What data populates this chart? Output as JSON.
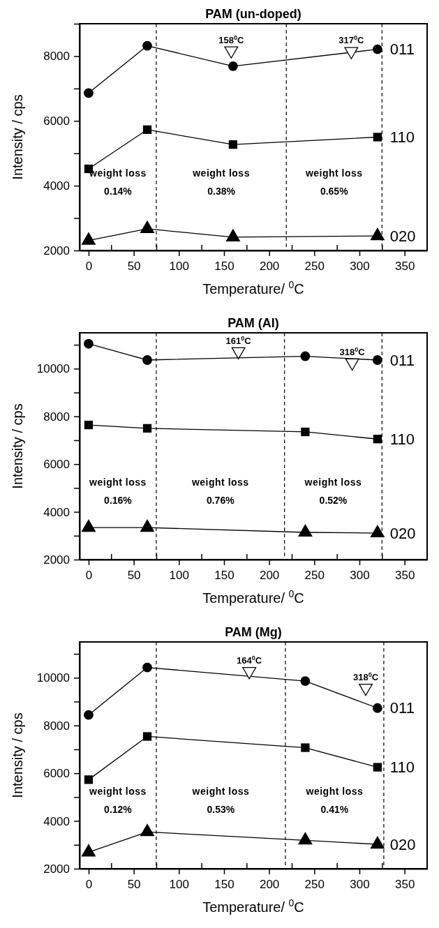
{
  "chart_data": [
    {
      "type": "line",
      "title": "PAM (un-doped)",
      "xlabel": "Temperature/ $^{0}$C",
      "ylabel": "Intensity / cps",
      "x": [
        0,
        65,
        160,
        320
      ],
      "xlim": [
        -10,
        375
      ],
      "ylim": [
        2000,
        9000
      ],
      "xticks": [
        0,
        {
          "value": 25,
          "label": null
        },
        50,
        {
          "value": 75,
          "label": null
        },
        100,
        {
          "value": 125,
          "label": null
        },
        150,
        {
          "value": 175,
          "label": null
        },
        200,
        {
          "value": 225,
          "label": null
        },
        250,
        {
          "value": 275,
          "label": null
        },
        300,
        {
          "value": 325,
          "label": null
        },
        350
      ],
      "yticks": [
        2000,
        {
          "value": 3000,
          "label": null
        },
        4000,
        {
          "value": 5000,
          "label": null
        },
        6000,
        {
          "value": 7000,
          "label": null
        },
        8000,
        {
          "value": 9000,
          "label": null
        }
      ],
      "series": [
        {
          "name": "011",
          "color": "#000000",
          "marker": "circle",
          "values": [
            6860,
            8320,
            7690,
            8210
          ]
        },
        {
          "name": "110",
          "color": "#000000",
          "marker": "square",
          "values": [
            4520,
            5730,
            5270,
            5500
          ]
        },
        {
          "name": "020",
          "color": "#000000",
          "marker": "triangle",
          "values": [
            2310,
            2670,
            2410,
            2450
          ]
        },
        {
          "type": "scatter",
          "color": "#000000",
          "marker": "triangle",
          "x": [
            158,
            291
          ],
          "values": [
            8170,
            8150
          ]
        }
      ],
      "ref_lines": [
        {
          "axis": "x",
          "value": 75,
          "line_style": "dashed"
        },
        {
          "axis": "x",
          "value": 219,
          "line_style": "dashed"
        },
        {
          "axis": "x",
          "value": 325,
          "line_style": "dashed"
        }
      ],
      "annotations": [
        "158$^{0}$C",
        "317$^{0}$C",
        "weight loss",
        "0.14%",
        "weight loss",
        "0.38%",
        "weight loss",
        "0.65%"
      ],
      "line_style": "solid",
      "grid": false,
      "legend": "right"
    },
    {
      "type": "line",
      "title": "PAM (Al)",
      "xlabel": "Temperature/ $^{0}$C",
      "ylabel": "Intensity / cps",
      "x": [
        0,
        65,
        240,
        320
      ],
      "xlim": [
        -10,
        375
      ],
      "ylim": [
        2000,
        11500
      ],
      "xticks": [
        0,
        {
          "value": 25,
          "label": null
        },
        50,
        {
          "value": 75,
          "label": null
        },
        100,
        {
          "value": 125,
          "label": null
        },
        150,
        {
          "value": 175,
          "label": null
        },
        200,
        {
          "value": 225,
          "label": null
        },
        250,
        {
          "value": 275,
          "label": null
        },
        300,
        {
          "value": 325,
          "label": null
        },
        350
      ],
      "yticks": [
        2000,
        {
          "value": 3000,
          "label": null
        },
        4000,
        {
          "value": 5000,
          "label": null
        },
        6000,
        {
          "value": 7000,
          "label": null
        },
        8000,
        {
          "value": 9000,
          "label": null
        },
        10000,
        {
          "value": 11000,
          "label": null
        }
      ],
      "series": [
        {
          "name": "011",
          "color": "#000000",
          "marker": "circle",
          "values": [
            11040,
            10360,
            10520,
            10360
          ]
        },
        {
          "name": "110",
          "color": "#000000",
          "marker": "square",
          "values": [
            7640,
            7500,
            7350,
            7050
          ]
        },
        {
          "name": "020",
          "color": "#000000",
          "marker": "triangle",
          "values": [
            3340,
            3340,
            3140,
            3110
          ]
        },
        {
          "type": "scatter",
          "color": "#000000",
          "marker": "triangle",
          "x": [
            166,
            292
          ],
          "values": [
            10720,
            10250
          ]
        }
      ],
      "ref_lines": [
        {
          "axis": "x",
          "value": 75,
          "line_style": "dashed"
        },
        {
          "axis": "x",
          "value": 217,
          "line_style": "dashed"
        },
        {
          "axis": "x",
          "value": 325,
          "line_style": "dashed"
        }
      ],
      "annotations": [
        "161$^{0}$C",
        "318$^{0}$C",
        "weight loss",
        "0.16%",
        "weight loss",
        "0.76%",
        "weight loss",
        "0.52%"
      ],
      "line_style": "solid",
      "grid": false,
      "legend": "right"
    },
    {
      "type": "line",
      "title": "PAM (Mg)",
      "xlabel": "Temperature/ $^{0}$C",
      "ylabel": "Intensity / cps",
      "x": [
        0,
        65,
        240,
        320
      ],
      "xlim": [
        -10,
        375
      ],
      "ylim": [
        2000,
        11500
      ],
      "xticks": [
        0,
        {
          "value": 25,
          "label": null
        },
        50,
        {
          "value": 75,
          "label": null
        },
        100,
        {
          "value": 125,
          "label": null
        },
        150,
        {
          "value": 175,
          "label": null
        },
        200,
        {
          "value": 225,
          "label": null
        },
        250,
        {
          "value": 275,
          "label": null
        },
        300,
        {
          "value": 325,
          "label": null
        },
        350
      ],
      "yticks": [
        2000,
        {
          "value": 3000,
          "label": null
        },
        4000,
        {
          "value": 5000,
          "label": null
        },
        6000,
        {
          "value": 7000,
          "label": null
        },
        8000,
        {
          "value": 9000,
          "label": null
        },
        10000,
        {
          "value": 11000,
          "label": null
        }
      ],
      "series": [
        {
          "name": "011",
          "color": "#000000",
          "marker": "circle",
          "values": [
            8440,
            10430,
            9860,
            8730
          ]
        },
        {
          "name": "110",
          "color": "#000000",
          "marker": "square",
          "values": [
            5730,
            7540,
            7070,
            6250
          ]
        },
        {
          "name": "020",
          "color": "#000000",
          "marker": "triangle",
          "values": [
            2690,
            3540,
            3190,
            3020
          ]
        },
        {
          "type": "scatter",
          "color": "#000000",
          "marker": "triangle",
          "x": [
            178,
            307
          ],
          "values": [
            10270,
            9570
          ]
        }
      ],
      "ref_lines": [
        {
          "axis": "x",
          "value": 75,
          "line_style": "dashed"
        },
        {
          "axis": "x",
          "value": 218,
          "line_style": "dashed"
        },
        {
          "axis": "x",
          "value": 327,
          "line_style": "dashed"
        }
      ],
      "annotations": [
        "164$^{0}$C",
        "318$^{0}$C",
        "weight loss",
        "0.12%",
        "weight loss",
        "0.53%",
        "weight loss",
        "0.41%"
      ],
      "line_style": "solid",
      "grid": false,
      "legend": "right"
    }
  ]
}
